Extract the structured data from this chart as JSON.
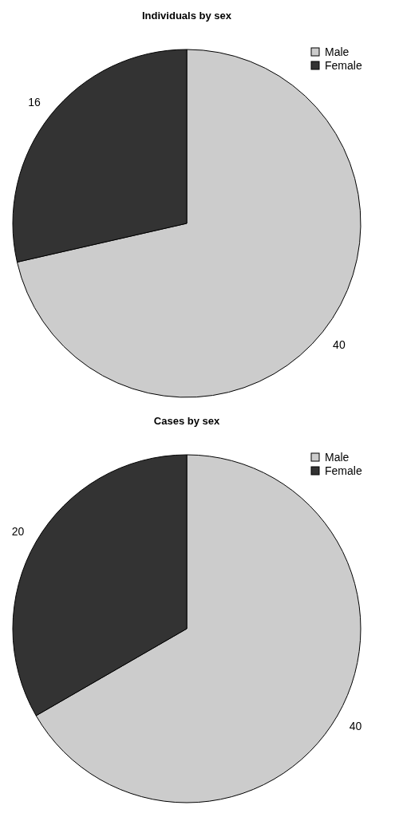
{
  "chart_data": [
    {
      "type": "pie",
      "title": "Individuals by sex",
      "categories": [
        "Male",
        "Female"
      ],
      "values": [
        40,
        16
      ],
      "colors": [
        "#cccccc",
        "#333333"
      ],
      "data_labels": true,
      "legend": "top right"
    },
    {
      "type": "pie",
      "title": "Cases by sex",
      "categories": [
        "Male",
        "Female"
      ],
      "values": [
        40,
        20
      ],
      "colors": [
        "#cccccc",
        "#333333"
      ],
      "data_labels": true,
      "legend": "top right"
    }
  ]
}
